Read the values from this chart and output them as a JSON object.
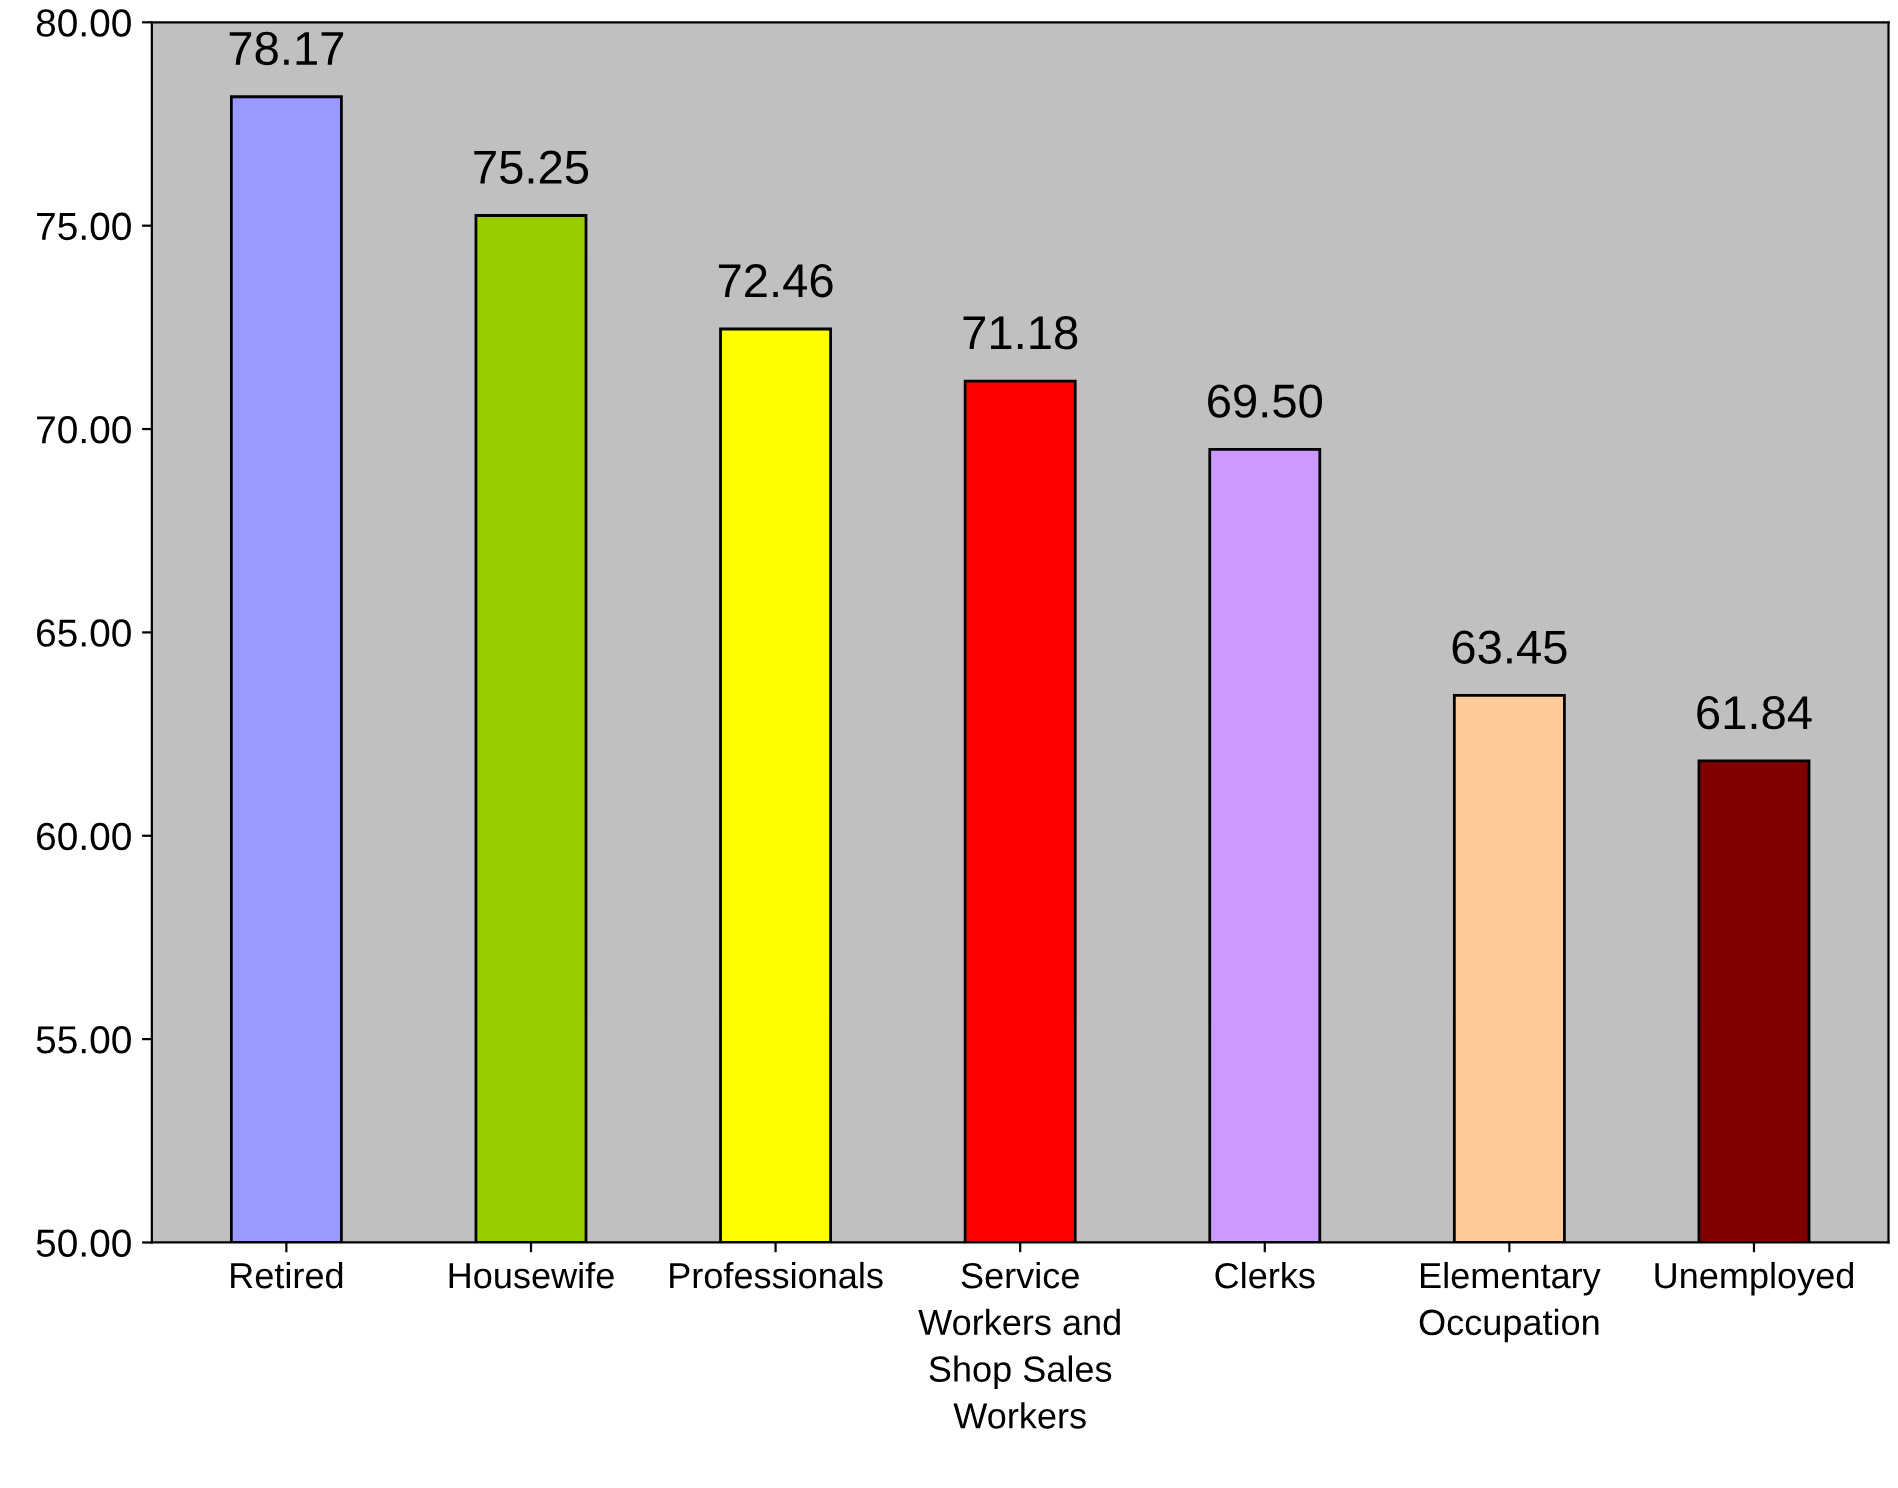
{
  "chart_data": {
    "type": "bar",
    "categories": [
      "Retired",
      "Housewife",
      "Professionals",
      "Service\nWorkers and\nShop Sales\nWorkers",
      "Clerks",
      "Elementary\nOccupation",
      "Unemployed"
    ],
    "values": [
      78.17,
      75.25,
      72.46,
      71.18,
      69.5,
      63.45,
      61.84
    ],
    "value_labels": [
      "78.17",
      "75.25",
      "72.46",
      "71.18",
      "69.50",
      "63.45",
      "61.84"
    ],
    "colors": [
      "#9999ff",
      "#99cc00",
      "#ffff00",
      "#ff0000",
      "#cc99ff",
      "#ffcc99",
      "#800000"
    ],
    "ylim": [
      50,
      80
    ],
    "yticks": [
      {
        "value": 50,
        "label": "50.00"
      },
      {
        "value": 55,
        "label": "55.00"
      },
      {
        "value": 60,
        "label": "60.00"
      },
      {
        "value": 65,
        "label": "65.00"
      },
      {
        "value": 70,
        "label": "70.00"
      },
      {
        "value": 75,
        "label": "75.00"
      },
      {
        "value": 80,
        "label": "80.00"
      }
    ],
    "grid": false,
    "legend": false
  }
}
